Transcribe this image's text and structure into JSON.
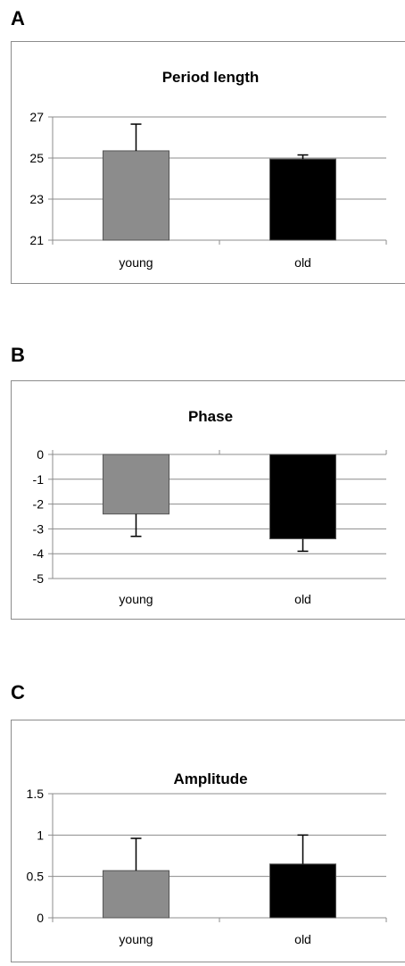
{
  "panels": [
    {
      "letter": "A"
    },
    {
      "letter": "B"
    },
    {
      "letter": "C"
    }
  ],
  "chart_data": [
    {
      "type": "bar",
      "title": "Period length",
      "categories": [
        "young",
        "old"
      ],
      "values": [
        25.35,
        24.95
      ],
      "errors": [
        1.3,
        0.2
      ],
      "error_direction": "up",
      "ylim": [
        21,
        27
      ],
      "yticks": [
        21,
        23,
        25,
        27
      ],
      "ytick_labels": [
        "21",
        "23",
        "25",
        "27"
      ],
      "grid": true,
      "colors": [
        "#8c8c8c",
        "#000000"
      ]
    },
    {
      "type": "bar",
      "title": "Phase",
      "categories": [
        "young",
        "old"
      ],
      "values": [
        -2.4,
        -3.4
      ],
      "errors": [
        0.9,
        0.5
      ],
      "error_direction": "down",
      "ylim": [
        -5,
        0
      ],
      "yticks": [
        0,
        -1,
        -2,
        -3,
        -4,
        -5
      ],
      "ytick_labels": [
        "0",
        "-1",
        "-2",
        "-3",
        "-4",
        "-5"
      ],
      "grid": true,
      "colors": [
        "#8c8c8c",
        "#000000"
      ]
    },
    {
      "type": "bar",
      "title": "Amplitude",
      "categories": [
        "young",
        "old"
      ],
      "values": [
        0.57,
        0.65
      ],
      "errors": [
        0.39,
        0.35
      ],
      "error_direction": "up",
      "ylim": [
        0,
        1.5
      ],
      "yticks": [
        0,
        0.5,
        1,
        1.5
      ],
      "ytick_labels": [
        "0",
        "0.5",
        "1",
        "1.5"
      ],
      "grid": true,
      "colors": [
        "#8c8c8c",
        "#000000"
      ]
    }
  ]
}
